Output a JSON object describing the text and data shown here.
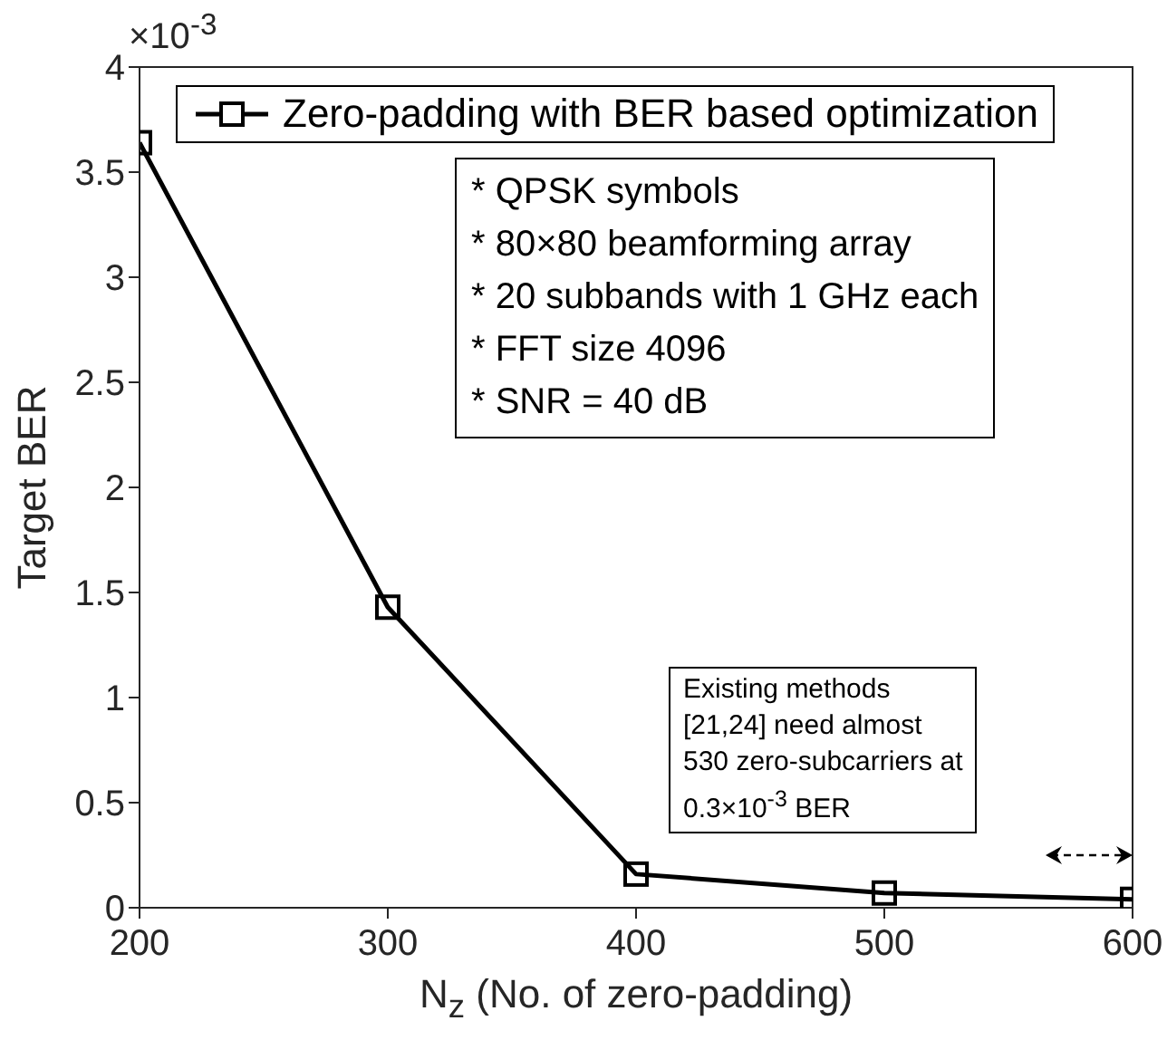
{
  "chart_data": {
    "type": "line",
    "xlabel": "N$_{z}$ (No. of zero-padding)",
    "ylabel": "Target BER",
    "x": [
      200,
      300,
      400,
      500,
      600
    ],
    "series": [
      {
        "name": "Zero-padding with BER based optimization",
        "color": "#000000",
        "values": [
          3.64,
          1.43,
          0.16,
          0.07,
          0.04
        ]
      }
    ],
    "xlim": [
      200,
      600
    ],
    "xticks": [
      200,
      300,
      400,
      500,
      600
    ],
    "ylim": [
      0,
      4
    ],
    "yticks": [
      0,
      0.5,
      1,
      1.5,
      2,
      2.5,
      3,
      3.5,
      4
    ],
    "marker": "square",
    "line_style": "solid",
    "grid": false,
    "legend": "top",
    "annotations": [
      "×10$^{-3}$",
      "* QPSK symbols\n* 80×80 beamforming array\n* 20 subbands with 1 GHz each\n* FFT size 4096\n* SNR = 40 dB",
      "Existing methods\n[21,24] need almost\n530 zero-subcarriers at\n0.3×10$^{-3}$ BER"
    ]
  }
}
